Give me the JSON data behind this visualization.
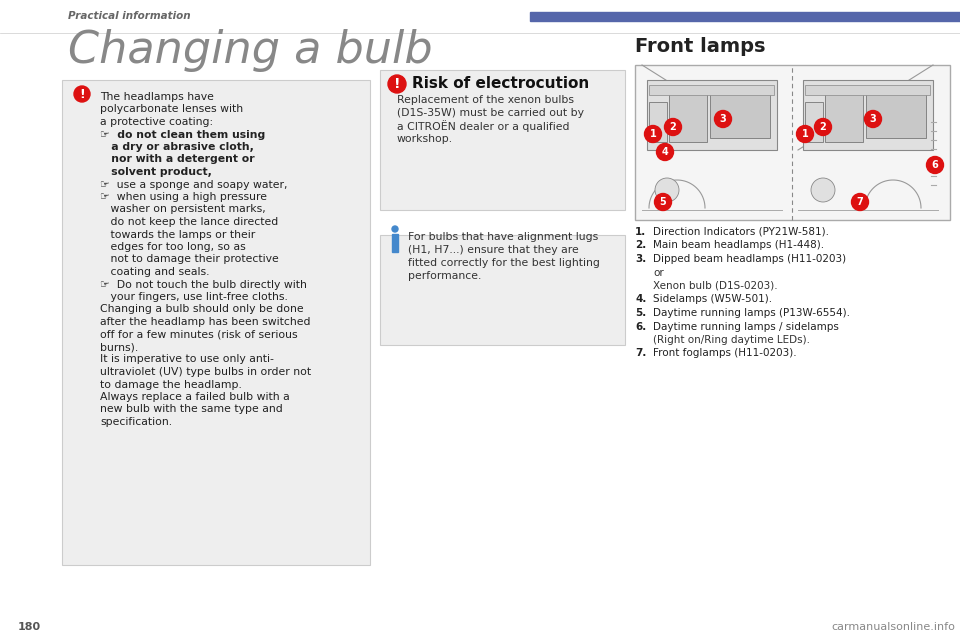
{
  "bg_color": "#ffffff",
  "header_text": "Practical information",
  "header_bar_color": "#5566aa",
  "title": "Changing a bulb",
  "title_color": "#888888",
  "title_fontsize": 32,
  "section_title": "Front lamps",
  "section_title_color": "#222222",
  "box_bg": "#eeeeee",
  "box_border": "#cccccc",
  "excl_color": "#dd1111",
  "info_color": "#4488cc",
  "page_number": "180",
  "watermark": "carmanualsonline.info",
  "risk_title": "Risk of electrocution",
  "risk_lines": [
    "Replacement of the xenon bulbs",
    "(D1S-35W) must be carried out by",
    "a CITROËN dealer or a qualified",
    "workshop."
  ],
  "info_lines": [
    "For bulbs that have alignment lugs",
    "(H1, H7...) ensure that they are",
    "fitted correctly for the best lighting",
    "performance."
  ],
  "num_list": [
    [
      "1.",
      "Direction Indicators (PY21W-581)."
    ],
    [
      "2.",
      "Main beam headlamps (H1-448)."
    ],
    [
      "3.",
      "Dipped beam headlamps (H11-0203)"
    ],
    [
      "",
      "or"
    ],
    [
      "",
      "Xenon bulb (D1S-0203)."
    ],
    [
      "4.",
      "Sidelamps (W5W-501)."
    ],
    [
      "5.",
      "Daytime running lamps (P13W-6554)."
    ],
    [
      "6.",
      "Daytime running lamps / sidelamps"
    ],
    [
      "",
      "(Right on/Ring daytime LEDs)."
    ],
    [
      "7.",
      "Front foglamps (H11-0203)."
    ]
  ]
}
